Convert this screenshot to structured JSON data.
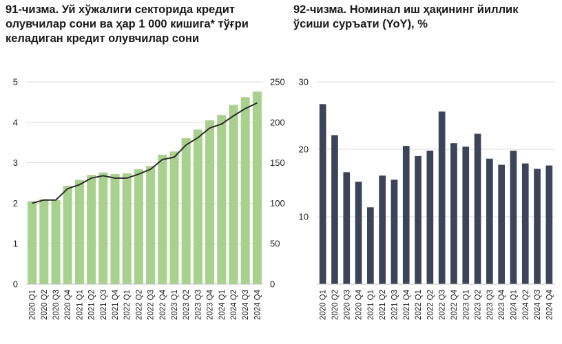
{
  "chart_data": [
    {
      "type": "bar+line",
      "title": "91-чизма. Уй хўжалиги секторида кредит олувчилар сони ва ҳар 1 000 кишига* тўғри келадиган кредит олувчилар сони",
      "categories": [
        "2020 Q1",
        "2020 Q2",
        "2020 Q3",
        "2020 Q4",
        "2021 Q1",
        "2021 Q2",
        "2021 Q3",
        "2021 Q4",
        "2022 Q1",
        "2022 Q2",
        "2022 Q3",
        "2022 Q4",
        "2023 Q1",
        "2023 Q2",
        "2023 Q3",
        "2023 Q4",
        "2024 Q1",
        "2024 Q2",
        "2024 Q3",
        "2024 Q4"
      ],
      "series": [
        {
          "name": "bars",
          "axis": "left",
          "color": "#a9d18e",
          "values": [
            2.05,
            2.1,
            2.08,
            2.43,
            2.58,
            2.7,
            2.76,
            2.72,
            2.74,
            2.84,
            2.92,
            3.2,
            3.28,
            3.61,
            3.82,
            4.05,
            4.18,
            4.43,
            4.62,
            4.76
          ]
        },
        {
          "name": "line",
          "axis": "right",
          "color": "#2b2b2b",
          "values": [
            100,
            104,
            104,
            118,
            123,
            131,
            134,
            131,
            131,
            136,
            142,
            154,
            157,
            172,
            181,
            193,
            198,
            208,
            217,
            224
          ]
        }
      ],
      "left_axis": {
        "ylim": [
          0,
          5
        ],
        "ticks": [
          "0",
          "1",
          "2",
          "3",
          "4",
          "5"
        ]
      },
      "right_axis": {
        "ylim": [
          0,
          250
        ],
        "ticks": [
          "0",
          "50",
          "100",
          "150",
          "200",
          "250"
        ]
      },
      "gridlines": true
    },
    {
      "type": "bar",
      "title": "92-чизма. Номинал иш ҳақининг йиллик ўсиши суръати (YoY), %",
      "categories": [
        "2020 Q1",
        "2020 Q2",
        "2020 Q3",
        "2020 Q4",
        "2021 Q1",
        "2021 Q2",
        "2021 Q3",
        "2021 Q4",
        "2022 Q1",
        "2022 Q2",
        "2022 Q3",
        "2022 Q4",
        "2023 Q1",
        "2023 Q2",
        "2023 Q3",
        "2023 Q4",
        "2024 Q1",
        "2024 Q2",
        "2024 Q3",
        "2024 Q4"
      ],
      "series": [
        {
          "name": "YoY",
          "color": "#3b4458",
          "values": [
            26.7,
            22.1,
            16.6,
            15.2,
            11.4,
            16.1,
            15.5,
            20.5,
            19.0,
            19.8,
            25.6,
            20.9,
            20.4,
            22.3,
            18.6,
            17.7,
            19.8,
            17.9,
            17.1,
            17.6
          ]
        }
      ],
      "axis": {
        "ylim": [
          0,
          30
        ],
        "ticks": [
          "10",
          "20",
          "30"
        ]
      },
      "gridlines": true
    }
  ]
}
